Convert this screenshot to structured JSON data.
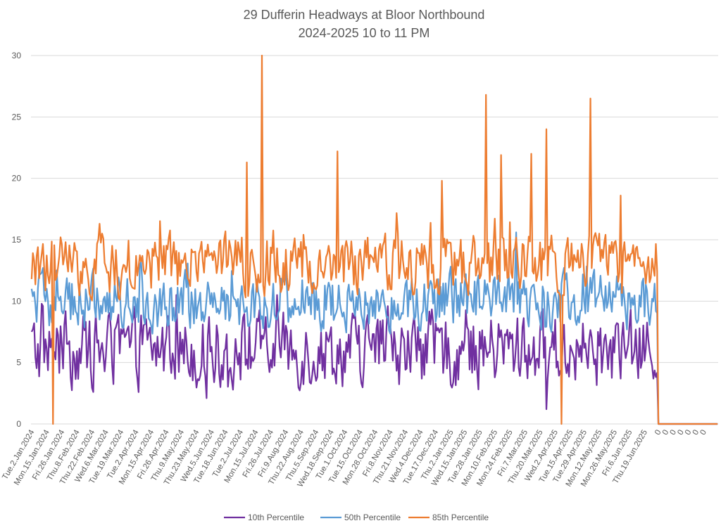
{
  "chart_data": {
    "type": "line",
    "title": "29 Dufferin Headways at Bloor Northbound",
    "subtitle": "2024-2025 10 to 11 PM",
    "xlabel": "",
    "ylabel": "",
    "ylim": [
      0,
      30
    ],
    "yticks": [
      0,
      5,
      10,
      15,
      20,
      25,
      30
    ],
    "grid": true,
    "legend_position": "bottom",
    "x_tick_labels": [
      "Tue.2.Jan.2024",
      "Mon.15.Jan.2024",
      "Fri.26.Jan.2024",
      "Thu.8.Feb.2024",
      "Thu.22.Feb.2024",
      "Wed.6.Mar.2024",
      "Tue.19.Mar.2024",
      "Tue.2.Apr.2024",
      "Mon.15.Apr.2024",
      "Fri.26.Apr.2024",
      "Thu.9.May.2024",
      "Thu.23.May.2024",
      "Wed.5.Jun.2024",
      "Tue.18.Jun.2024",
      "Tue.2.Jul.2024",
      "Mon.15.Jul.2024",
      "Fri.26.Jul.2024",
      "Fri.9.Aug.2024",
      "Thu.22.Aug.2024",
      "Thu.5.Sep.2024",
      "Wed.18.Sep.2024",
      "Tue.1.Oct.2024",
      "Tue.15.Oct.2024",
      "Mon.28.Oct.2024",
      "Fri.8.Nov.2024",
      "Thu.21.Nov.2024",
      "Wed.4.Dec.2024",
      "Tue.17.Dec.2024",
      "Thu.2.Jan.2025",
      "Wed.15.Jan.2025",
      "Tue.28.Jan.2025",
      "Mon.10.Feb.2025",
      "Mon.24.Feb.2025",
      "Fri.7.Mar.2025",
      "Thu.20.Mar.2025",
      "Wed.2.Apr.2025",
      "Tue.15.Apr.2025",
      "Tue.29.Apr.2025",
      "Mon.12.May.2025",
      "Mon.26.May.2025",
      "Fri.6.Jun.2025",
      "Thu.19.Jun.2025",
      "0",
      "0",
      "0",
      "0",
      "0",
      "0",
      "0"
    ],
    "n_points": 546,
    "data_end_index": 497,
    "series": [
      {
        "name": "10th Percentile",
        "color": "#7030A0",
        "typical_range": [
          1,
          10
        ],
        "mean_approx": 6,
        "notable_values": [
          {
            "near": "Tue.2.Jan.2024",
            "value": 7.5
          },
          {
            "near": "Thu.20.Mar.2025",
            "value": 1.2
          }
        ]
      },
      {
        "name": "50th Percentile",
        "color": "#5B9BD5",
        "typical_range": [
          6,
          13
        ],
        "mean_approx": 10,
        "notable_values": [
          {
            "near": "Tue.2.Jan.2024",
            "value": 11
          },
          {
            "near": "Mon.24.Feb.2025",
            "value": 15.6
          }
        ]
      },
      {
        "name": "85th Percentile",
        "color": "#ED7D31",
        "typical_range": [
          10,
          17
        ],
        "mean_approx": 13,
        "notable_values": [
          {
            "near": "Tue.2.Jan.2024",
            "value": 11.8
          },
          {
            "near": "Mon.15.Jan.2024",
            "value": 0
          },
          {
            "near": "Tue.2.Jul.2024",
            "value": 21.3
          },
          {
            "near": "Mon.15.Jul.2024",
            "value": 30
          },
          {
            "near": "Wed.18.Sep.2024",
            "value": 22.2
          },
          {
            "near": "Tue.17.Dec.2024",
            "value": 19.8
          },
          {
            "near": "Tue.28.Jan.2025",
            "value": 26.8
          },
          {
            "near": "Mon.10.Feb.2025",
            "value": 21.9
          },
          {
            "near": "Fri.7.Mar.2025",
            "value": 22
          },
          {
            "near": "Thu.20.Mar.2025",
            "value": 24
          },
          {
            "near": "Wed.2.Apr.2025",
            "value": 0
          },
          {
            "near": "Tue.29.Apr.2025",
            "value": 26.5
          },
          {
            "near": "Mon.26.May.2025",
            "value": 18.6
          }
        ]
      }
    ],
    "trailing_zero_categories": 7
  }
}
